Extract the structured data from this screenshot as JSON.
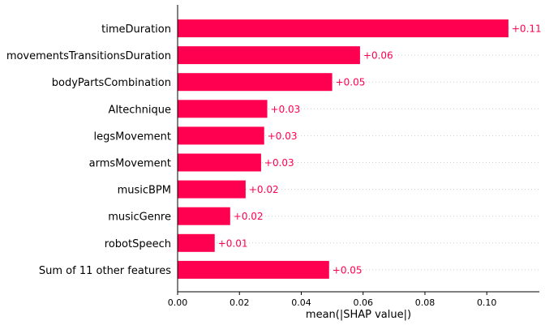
{
  "chart_data": {
    "type": "bar",
    "orientation": "horizontal",
    "bar_color": "#ff0051",
    "label_color": "#ff0051",
    "categories": [
      "timeDuration",
      "movementsTransitionsDuration",
      "bodyPartsCombination",
      "AItechnique",
      "legsMovement",
      "armsMovement",
      "musicBPM",
      "musicGenre",
      "robotSpeech",
      "Sum of 11 other features"
    ],
    "values": [
      0.107,
      0.059,
      0.05,
      0.029,
      0.028,
      0.027,
      0.022,
      0.017,
      0.012,
      0.049
    ],
    "value_labels": [
      "+0.11",
      "+0.06",
      "+0.05",
      "+0.03",
      "+0.03",
      "+0.03",
      "+0.02",
      "+0.02",
      "+0.01",
      "+0.05"
    ],
    "xlabel": "mean(|SHAP value|)",
    "xlim": [
      0,
      0.117
    ],
    "xticks": [
      0.0,
      0.02,
      0.04,
      0.06,
      0.08,
      0.1
    ],
    "xtick_labels": [
      "0.00",
      "0.02",
      "0.04",
      "0.06",
      "0.08",
      "0.10"
    ],
    "grid": "horizontal dotted"
  }
}
